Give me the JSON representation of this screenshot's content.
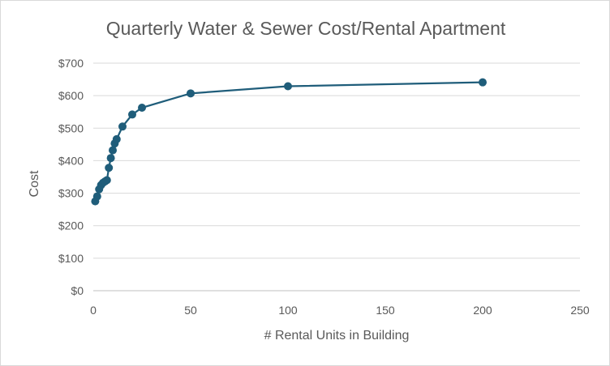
{
  "chart_data": {
    "type": "scatter",
    "title": "Quarterly Water & Sewer Cost/Rental Apartment",
    "xlabel": "# Rental  Units in Building",
    "ylabel": "Cost",
    "xlim": [
      0,
      250
    ],
    "ylim": [
      0,
      700
    ],
    "x_ticks": [
      0,
      50,
      100,
      150,
      200,
      250
    ],
    "y_ticks": [
      0,
      100,
      200,
      300,
      400,
      500,
      600,
      700
    ],
    "y_tick_labels": [
      "$0",
      "$100",
      "$200",
      "$300",
      "$400",
      "$500",
      "$600",
      "$700"
    ],
    "grid": "horizontal",
    "legend": "none",
    "colors": {
      "series": "#1f5d7a"
    },
    "series": [
      {
        "x": [
          1,
          2,
          3,
          4,
          5,
          6,
          7,
          8,
          9,
          10,
          11,
          12,
          15,
          20,
          25,
          50,
          100,
          200
        ],
        "values": [
          275,
          290,
          312,
          325,
          332,
          336,
          340,
          378,
          408,
          432,
          453,
          466,
          505,
          542,
          563,
          607,
          629,
          641
        ]
      }
    ]
  }
}
